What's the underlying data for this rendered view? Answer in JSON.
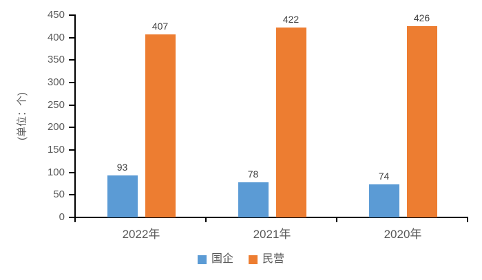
{
  "chart_data": {
    "type": "bar",
    "title": "",
    "ylabel": "(单位：个)",
    "xlabel": "",
    "categories": [
      "2022年",
      "2021年",
      "2020年"
    ],
    "series": [
      {
        "name": "国企",
        "color": "#5B9BD5",
        "values": [
          93,
          78,
          74
        ]
      },
      {
        "name": "民营",
        "color": "#ED7D31",
        "values": [
          407,
          422,
          426
        ]
      }
    ],
    "ylim": [
      0,
      450
    ],
    "yticks": [
      450,
      400,
      350,
      300,
      250,
      200,
      150,
      100,
      50,
      0
    ],
    "grid": false,
    "legend_position": "bottom",
    "data_labels_shown": true
  },
  "colors": {
    "axis": "#000000",
    "tick_label": "#595959",
    "data_label": "#404040"
  }
}
